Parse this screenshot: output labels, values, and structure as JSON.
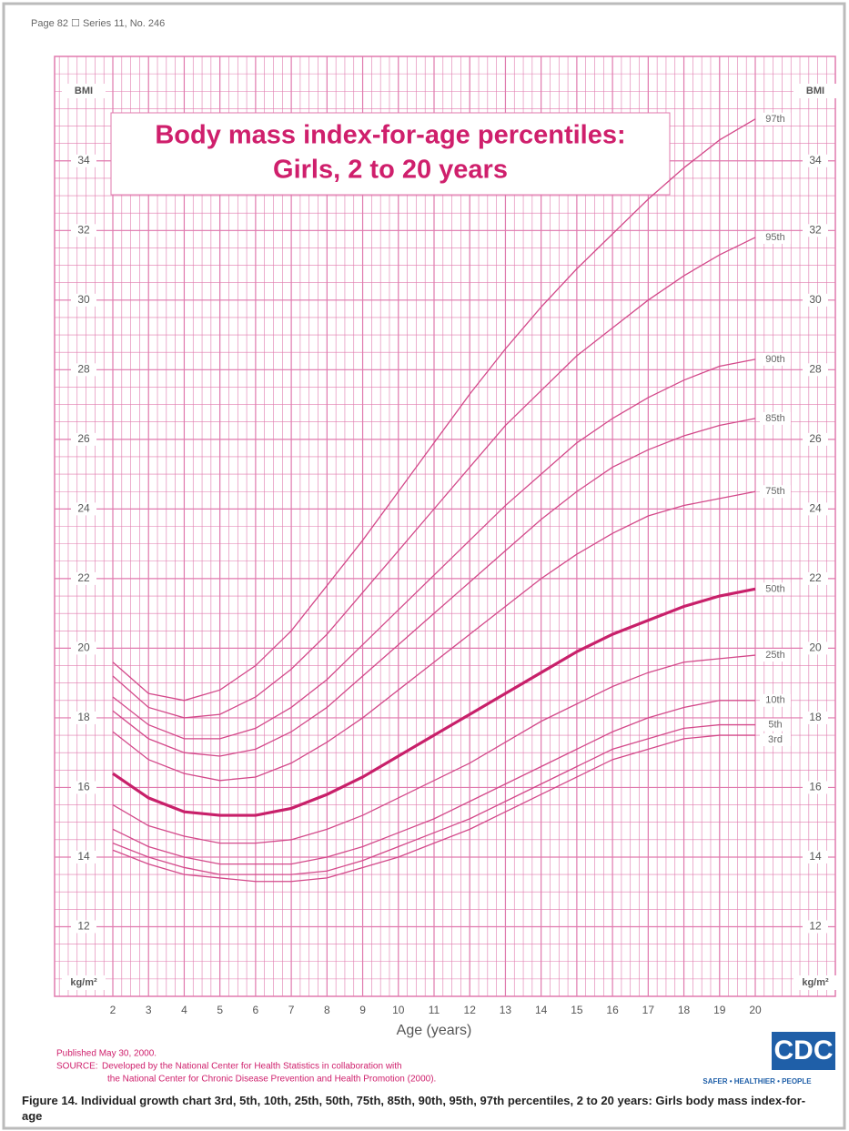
{
  "header": "Page 82 ☐ Series 11, No. 246",
  "chart_data": {
    "type": "line",
    "title": [
      "Body mass index-for-age percentiles:",
      "Girls, 2 to 20 years"
    ],
    "y_label_top": "BMI",
    "y_label_bottom": "kg/m²",
    "x_label": "Age (years)",
    "x": [
      2,
      3,
      4,
      5,
      6,
      7,
      8,
      9,
      10,
      11,
      12,
      13,
      14,
      15,
      16,
      17,
      18,
      19,
      20
    ],
    "xlim": [
      2,
      20
    ],
    "xticks": [
      2,
      3,
      4,
      5,
      6,
      7,
      8,
      9,
      10,
      11,
      12,
      13,
      14,
      15,
      16,
      17,
      18,
      19,
      20
    ],
    "ylim": [
      10,
      37
    ],
    "yticks": [
      12,
      14,
      16,
      18,
      20,
      22,
      24,
      26,
      28,
      30,
      32,
      34
    ],
    "grid": true,
    "color": "#d3498a",
    "series": [
      {
        "name": "97th",
        "color": "#d3498a",
        "values": [
          19.6,
          18.7,
          18.5,
          18.8,
          19.5,
          20.5,
          21.8,
          23.1,
          24.5,
          25.9,
          27.3,
          28.6,
          29.8,
          30.9,
          31.9,
          32.9,
          33.8,
          34.6,
          35.2
        ]
      },
      {
        "name": "95th",
        "color": "#d3498a",
        "values": [
          19.2,
          18.3,
          18.0,
          18.1,
          18.6,
          19.4,
          20.4,
          21.6,
          22.8,
          24.0,
          25.2,
          26.4,
          27.4,
          28.4,
          29.2,
          30.0,
          30.7,
          31.3,
          31.8
        ]
      },
      {
        "name": "90th",
        "color": "#d3498a",
        "values": [
          18.6,
          17.8,
          17.4,
          17.4,
          17.7,
          18.3,
          19.1,
          20.1,
          21.1,
          22.1,
          23.1,
          24.1,
          25.0,
          25.9,
          26.6,
          27.2,
          27.7,
          28.1,
          28.3
        ]
      },
      {
        "name": "85th",
        "color": "#d3498a",
        "values": [
          18.2,
          17.4,
          17.0,
          16.9,
          17.1,
          17.6,
          18.3,
          19.2,
          20.1,
          21.0,
          21.9,
          22.8,
          23.7,
          24.5,
          25.2,
          25.7,
          26.1,
          26.4,
          26.6
        ]
      },
      {
        "name": "75th",
        "color": "#d3498a",
        "values": [
          17.6,
          16.8,
          16.4,
          16.2,
          16.3,
          16.7,
          17.3,
          18.0,
          18.8,
          19.6,
          20.4,
          21.2,
          22.0,
          22.7,
          23.3,
          23.8,
          24.1,
          24.3,
          24.5
        ]
      },
      {
        "name": "50th",
        "color": "#c8206a",
        "values": [
          16.4,
          15.7,
          15.3,
          15.2,
          15.2,
          15.4,
          15.8,
          16.3,
          16.9,
          17.5,
          18.1,
          18.7,
          19.3,
          19.9,
          20.4,
          20.8,
          21.2,
          21.5,
          21.7
        ]
      },
      {
        "name": "25th",
        "color": "#d3498a",
        "values": [
          15.5,
          14.9,
          14.6,
          14.4,
          14.4,
          14.5,
          14.8,
          15.2,
          15.7,
          16.2,
          16.7,
          17.3,
          17.9,
          18.4,
          18.9,
          19.3,
          19.6,
          19.7,
          19.8
        ]
      },
      {
        "name": "10th",
        "color": "#d3498a",
        "values": [
          14.8,
          14.3,
          14.0,
          13.8,
          13.8,
          13.8,
          14.0,
          14.3,
          14.7,
          15.1,
          15.6,
          16.1,
          16.6,
          17.1,
          17.6,
          18.0,
          18.3,
          18.5,
          18.5
        ]
      },
      {
        "name": "5th",
        "color": "#d3498a",
        "values": [
          14.4,
          14.0,
          13.7,
          13.5,
          13.5,
          13.5,
          13.6,
          13.9,
          14.3,
          14.7,
          15.1,
          15.6,
          16.1,
          16.6,
          17.1,
          17.4,
          17.7,
          17.8,
          17.8
        ]
      },
      {
        "name": "3rd",
        "color": "#d3498a",
        "values": [
          14.2,
          13.8,
          13.5,
          13.4,
          13.3,
          13.3,
          13.4,
          13.7,
          14.0,
          14.4,
          14.8,
          15.3,
          15.8,
          16.3,
          16.8,
          17.1,
          17.4,
          17.5,
          17.5
        ]
      }
    ]
  },
  "footer": {
    "published": "Published May 30, 2000.",
    "source_label": "SOURCE:",
    "source_lines": [
      "Developed by the National Center for Health Statistics in collaboration with",
      "the National Center for Chronic Disease Prevention and Health Promotion (2000)."
    ],
    "logo": "CDC",
    "slogan": "SAFER • HEALTHIER • PEOPLE"
  },
  "caption": "Figure 14. Individual growth chart 3rd, 5th, 10th, 25th, 50th, 75th, 85th, 90th, 95th, 97th percentiles, 2 to 20 years: Girls body mass index-for-age"
}
